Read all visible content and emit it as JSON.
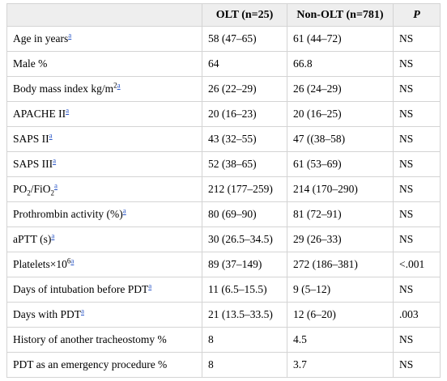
{
  "table": {
    "headers": [
      "",
      "OLT (n=25)",
      "Non-OLT (n=781)",
      "P"
    ],
    "rows": [
      {
        "label": "Age in years",
        "fn": "a",
        "olt": "58 (47–65)",
        "non_olt": "61 (44–72)",
        "p": "NS"
      },
      {
        "label": "Male %",
        "olt": "64",
        "non_olt": "66.8",
        "p": "NS"
      },
      {
        "label": "Body mass index kg/m",
        "sup_text": "2",
        "fn": "a",
        "olt": "26 (22–29)",
        "non_olt": "26 (24–29)",
        "p": "NS"
      },
      {
        "label": "APACHE II",
        "fn": "a",
        "olt": "20 (16–23)",
        "non_olt": "20 (16–25)",
        "p": "NS"
      },
      {
        "label": "SAPS II",
        "fn": "a",
        "olt": "43 (32–55)",
        "non_olt": "47 ((38–58)",
        "p": "NS"
      },
      {
        "label": "SAPS III",
        "fn": "a",
        "olt": "52 (38–65)",
        "non_olt": "61 (53–69)",
        "p": "NS"
      },
      {
        "label_parts": [
          "PO",
          "2",
          "/FiO",
          "2"
        ],
        "fn": "a",
        "olt": "212 (177–259)",
        "non_olt": "214 (170–290)",
        "p": "NS"
      },
      {
        "label": "Prothrombin activity (%)",
        "fn": "a",
        "olt": "80 (69–90)",
        "non_olt": "81 (72–91)",
        "p": "NS"
      },
      {
        "label": "aPTT (s)",
        "fn": "a",
        "olt": "30 (26.5–34.5)",
        "non_olt": "29 (26–33)",
        "p": "NS"
      },
      {
        "label": "Platelets×10",
        "sup_text": "6",
        "fn": "a",
        "olt": "89 (37–149)",
        "non_olt": "272 (186–381)",
        "p": "<.001"
      },
      {
        "label": "Days of intubation before PDT",
        "fn": "a",
        "olt": "11 (6.5–15.5)",
        "non_olt": "9 (5–12)",
        "p": "NS"
      },
      {
        "label": "Days with PDT",
        "fn": "a",
        "olt": "21 (13.5–33.5)",
        "non_olt": "12 (6–20)",
        "p": ".003"
      },
      {
        "label": "History of another tracheostomy %",
        "olt": "8",
        "non_olt": "4.5",
        "p": "NS"
      },
      {
        "label": "PDT as an emergency procedure %",
        "olt": "8",
        "non_olt": "3.7",
        "p": "NS"
      }
    ]
  },
  "colors": {
    "header_bg": "#eeeeee",
    "border": "#d4d4d4",
    "link": "#2a56c6"
  }
}
